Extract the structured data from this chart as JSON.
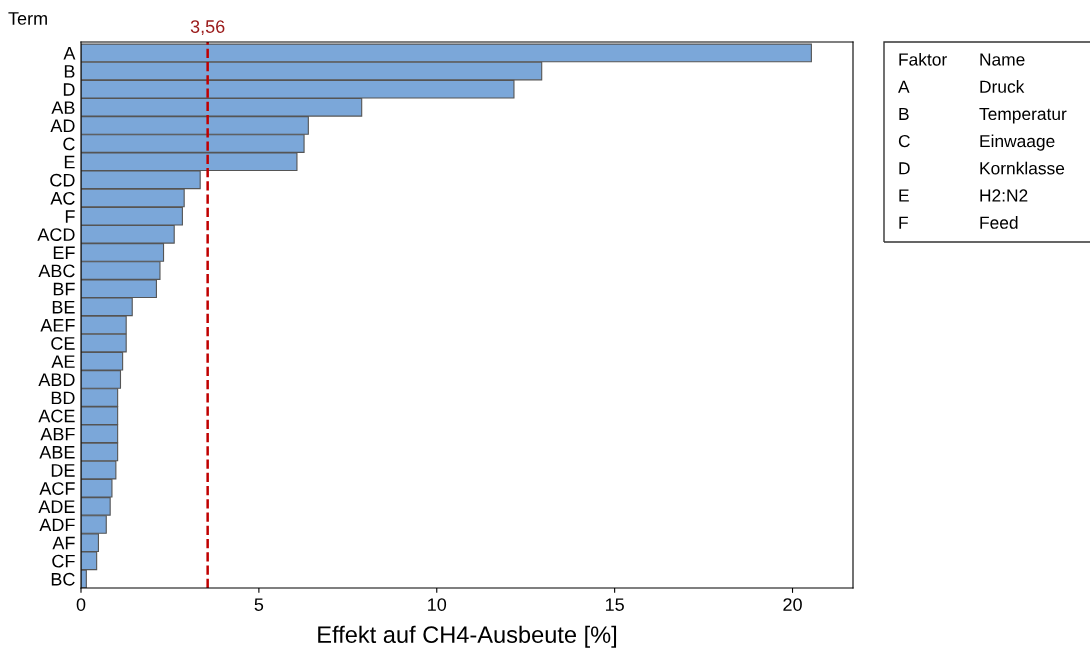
{
  "chart_data": {
    "type": "bar",
    "orientation": "horizontal",
    "xlabel": "Effekt auf CH4-Ausbeute [%]",
    "ylabel": "Term",
    "categories": [
      "A",
      "B",
      "D",
      "AB",
      "AD",
      "C",
      "E",
      "CD",
      "AC",
      "F",
      "ACD",
      "EF",
      "ABC",
      "BF",
      "BE",
      "AEF",
      "CE",
      "AE",
      "ABD",
      "BD",
      "ACE",
      "ABF",
      "ABE",
      "DE",
      "ACF",
      "ADE",
      "ADF",
      "AF",
      "CF",
      "BC"
    ],
    "values": [
      20.53,
      12.95,
      12.17,
      7.89,
      6.39,
      6.27,
      6.07,
      3.35,
      2.9,
      2.85,
      2.62,
      2.32,
      2.22,
      2.12,
      1.44,
      1.27,
      1.27,
      1.17,
      1.11,
      1.03,
      1.03,
      1.03,
      1.03,
      0.98,
      0.87,
      0.82,
      0.71,
      0.49,
      0.44,
      0.15
    ],
    "color": "#7ba7d9",
    "xlim": [
      0,
      21.7
    ],
    "xticks": [
      0,
      5,
      10,
      15,
      20
    ],
    "grid": false,
    "ref_lines": [
      {
        "axis": "x",
        "value": 3.56,
        "label": "3,56",
        "color": "#c00000",
        "line_style": "dashed"
      }
    ],
    "annotations": [
      "Faktor",
      "Name",
      "A",
      "Druck",
      "B",
      "Temperatur",
      "C",
      "Einwaage",
      "D",
      "Kornklasse",
      "E",
      "H2:N2",
      "F",
      "Feed"
    ]
  }
}
